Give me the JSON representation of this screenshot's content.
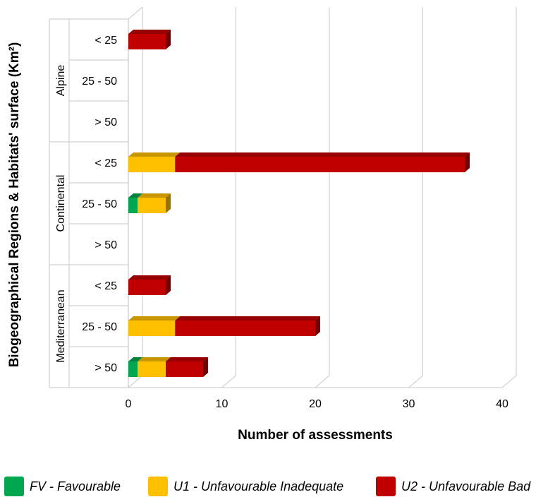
{
  "chart_data": {
    "type": "bar",
    "orientation": "horizontal",
    "stacked": true,
    "xlabel": "Number of assessments",
    "ylabel": "Biogeographical Regions & Habitats' surface (Km²)",
    "xlim": [
      0,
      40
    ],
    "x_ticks": [
      "0",
      "10",
      "20",
      "30",
      "40"
    ],
    "grid": true,
    "legend_position": "bottom",
    "groups": [
      {
        "name": "Alpine",
        "categories": [
          "< 25",
          "25 - 50",
          "> 50"
        ]
      },
      {
        "name": "Continental",
        "categories": [
          "< 25",
          "25 - 50",
          "> 50"
        ]
      },
      {
        "name": "Mediterranean",
        "categories": [
          "< 25",
          "25 - 50",
          "> 50"
        ]
      }
    ],
    "series": [
      {
        "name": "FV - Favourable",
        "color": "#00a650",
        "values": [
          0,
          0,
          0,
          0,
          1,
          0,
          0,
          0,
          1
        ]
      },
      {
        "name": "U1 - Unfavourable Inadequate",
        "color": "#ffc000",
        "values": [
          0,
          0,
          0,
          5,
          3,
          0,
          0,
          5,
          3
        ]
      },
      {
        "name": "U2 - Unfavourable Bad",
        "color": "#c00000",
        "values": [
          4,
          0,
          0,
          31,
          0,
          0,
          4,
          15,
          4
        ]
      }
    ]
  }
}
